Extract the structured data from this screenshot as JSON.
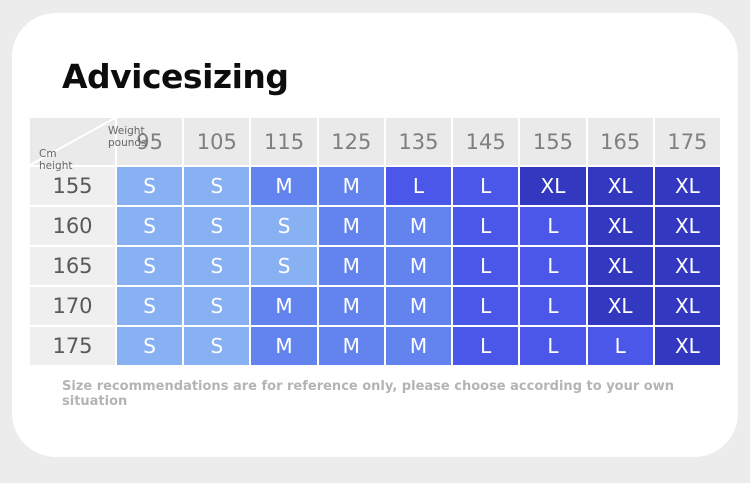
{
  "card": {
    "title": "Advicesizing",
    "footer_note": "Size recommendations are for reference only, please choose according to your own situation"
  },
  "table": {
    "corner": {
      "weight_label_line1": "Weight",
      "weight_label_line2": "pounds",
      "height_label_line1": "Cm",
      "height_label_line2": "height"
    }
  },
  "chart_data": {
    "type": "heatmap",
    "title": "Advicesizing",
    "columns_axis_label": "Weight pounds",
    "rows_axis_label": "Cm height",
    "columns": [
      "95",
      "105",
      "115",
      "125",
      "135",
      "145",
      "155",
      "165",
      "175"
    ],
    "rows": [
      "155",
      "160",
      "165",
      "170",
      "175"
    ],
    "values": [
      [
        "S",
        "S",
        "M",
        "M",
        "L",
        "L",
        "XL",
        "XL",
        "XL"
      ],
      [
        "S",
        "S",
        "S",
        "M",
        "M",
        "L",
        "L",
        "XL",
        "XL"
      ],
      [
        "S",
        "S",
        "S",
        "M",
        "M",
        "L",
        "L",
        "XL",
        "XL"
      ],
      [
        "S",
        "S",
        "M",
        "M",
        "M",
        "L",
        "L",
        "XL",
        "XL"
      ],
      [
        "S",
        "S",
        "M",
        "M",
        "M",
        "L",
        "L",
        "L",
        "XL"
      ]
    ],
    "color_scale": {
      "S": "#88B1F4",
      "M": "#6384EE",
      "L": "#4A57E9",
      "XL": "#3338C1"
    },
    "note": "Size recommendations are for reference only, please choose according to your own situation"
  },
  "colors": {
    "page_bg": "#ececec",
    "card_bg": "#ffffff",
    "header_bg": "#eaeaea",
    "row_label_bg": "#efefef",
    "header_text": "#7f7f7f",
    "row_label_text": "#595959",
    "cell_text": "#ffffff",
    "title_text": "#0d0d0d",
    "footer_text": "#b4b4b4"
  }
}
